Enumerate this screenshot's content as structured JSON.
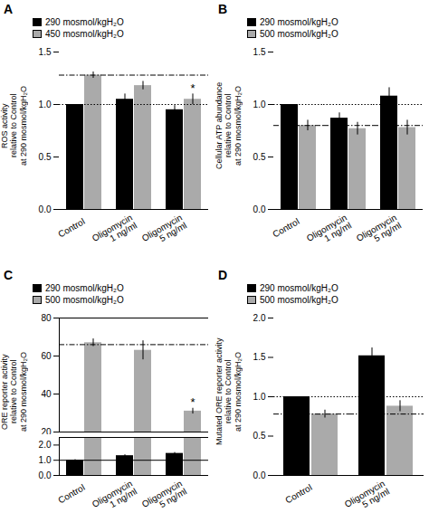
{
  "chart_data": [
    {
      "type": "bar",
      "title": "A",
      "ylabel": "ROS activity\nrelative to Control\nat 290 mosmol/kgH₂O",
      "categories": [
        "Control",
        "Oligomycin\n1 ng/ml",
        "Oligomycin\n5 ng/ml"
      ],
      "series": [
        {
          "name": "290 mosmol/kgH₂O",
          "color": "#000000",
          "values": [
            1.0,
            1.05,
            0.95
          ],
          "errors": [
            0.0,
            0.05,
            0.04
          ]
        },
        {
          "name": "450 mosmol/kgH₂O",
          "color": "#aaaaaa",
          "values": [
            1.28,
            1.18,
            1.05
          ],
          "errors": [
            0.03,
            0.04,
            0.05
          ]
        }
      ],
      "ylim": [
        0.0,
        1.5
      ],
      "yticks": [
        {
          "value": 0.0,
          "label": "0.0"
        },
        0.5,
        {
          "value": 1.0,
          "label": "1.0"
        },
        1.5
      ],
      "hlines": [
        {
          "value": 1.0,
          "line_style": "dotted"
        },
        {
          "value": 1.28,
          "line_style": "dashdot"
        }
      ],
      "annotations": [
        {
          "text": "*",
          "category": "Oligomycin\n5 ng/ml",
          "series": "450 mosmol/kgH₂O"
        }
      ],
      "legend": "top"
    },
    {
      "type": "bar",
      "title": "B",
      "ylabel": "Cellular ATP abundance\nrelative to Control\nat 290 mosmol/kgH₂O",
      "categories": [
        "Control",
        "Oligomycin\n1 ng/ml",
        "Oligomycin\n5 ng/ml"
      ],
      "series": [
        {
          "name": "290 mosmol/kgH₂O",
          "color": "#000000",
          "values": [
            1.0,
            0.87,
            1.08
          ],
          "errors": [
            0.0,
            0.05,
            0.08
          ]
        },
        {
          "name": "500 mosmol/kgH₂O",
          "color": "#aaaaaa",
          "values": [
            0.8,
            0.77,
            0.78
          ],
          "errors": [
            0.05,
            0.06,
            0.07
          ]
        }
      ],
      "ylim": [
        0.0,
        1.5
      ],
      "yticks": [
        {
          "value": 0.0,
          "label": "0.0"
        },
        0.5,
        {
          "value": 1.0,
          "label": "1.0"
        },
        1.5
      ],
      "hlines": [
        {
          "value": 1.0,
          "line_style": "dotted"
        },
        {
          "value": 0.8,
          "line_style": "dashdot"
        }
      ],
      "legend": "top"
    },
    {
      "type": "bar",
      "title": "C",
      "ylabel": "ORE reporter activity\nrelative to Control\nat 290 mosmol/kgH₂O",
      "categories": [
        "Control",
        "Oligomycin\n1 ng/ml",
        "Oligomycin\n5 ng/ml"
      ],
      "series": [
        {
          "name": "290 mosmol/kgH₂O",
          "color": "#000000",
          "values": [
            1.0,
            1.3,
            1.45
          ],
          "errors": [
            0.04,
            0.06,
            0.06
          ]
        },
        {
          "name": "500 mosmol/kgH₂O",
          "color": "#aaaaaa",
          "values": [
            67.0,
            63.0,
            31.0
          ],
          "errors": [
            2.0,
            5.0,
            1.5
          ]
        }
      ],
      "y_segments": [
        {
          "ylim": [
            0.0,
            2.5
          ],
          "yticks": [
            {
              "value": 0.0,
              "label": "0.0"
            },
            {
              "value": 1.0,
              "label": "1.0"
            },
            {
              "value": 2.0,
              "label": "2.0"
            }
          ]
        },
        {
          "ylim": [
            20,
            80
          ],
          "yticks": [
            20,
            40,
            60,
            80
          ]
        }
      ],
      "hlines": [
        {
          "value": 1.0,
          "line_style": "solid"
        },
        {
          "value": 66.0,
          "line_style": "dashdot"
        }
      ],
      "annotations": [
        {
          "text": "*",
          "category": "Oligomycin\n5 ng/ml",
          "series": "500 mosmol/kgH₂O"
        }
      ],
      "legend": "top"
    },
    {
      "type": "bar",
      "title": "D",
      "ylabel": "Mutated ORE reporter activity\nrelative to Control\nat 290 mosmol/kgH₂O",
      "categories": [
        "Control",
        "Oligomycin\n5 ng/ml"
      ],
      "series": [
        {
          "name": "290 mosmol/kgH₂O",
          "color": "#000000",
          "values": [
            1.0,
            1.52
          ],
          "errors": [
            0.0,
            0.1
          ]
        },
        {
          "name": "500 mosmol/kgH₂O",
          "color": "#aaaaaa",
          "values": [
            0.78,
            0.88
          ],
          "errors": [
            0.05,
            0.07
          ]
        }
      ],
      "ylim": [
        0.0,
        2.0
      ],
      "yticks": [
        {
          "value": 0.0,
          "label": "0.0"
        },
        0.5,
        {
          "value": 1.0,
          "label": "1.0"
        },
        1.5,
        {
          "value": 2.0,
          "label": "2.0"
        }
      ],
      "hlines": [
        {
          "value": 1.0,
          "line_style": "dotted"
        },
        {
          "value": 0.78,
          "line_style": "dashdot"
        }
      ],
      "legend": "top"
    }
  ]
}
